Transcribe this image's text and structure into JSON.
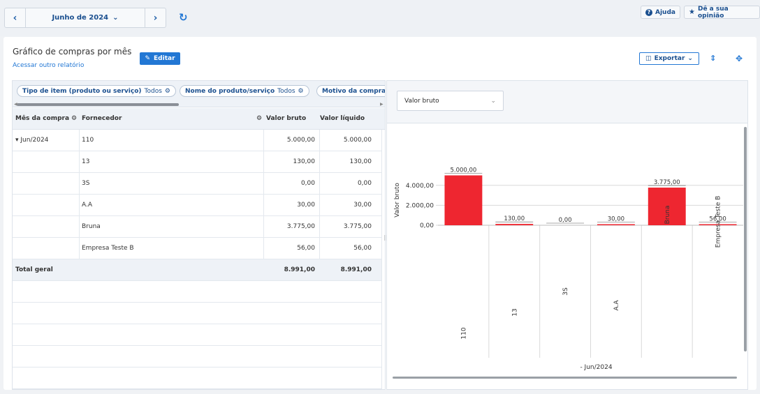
{
  "topbar": {
    "prev_icon": "chevron-left-icon",
    "month_label": "Junho de 2024",
    "next_icon": "chevron-right-icon",
    "refresh_icon": "refresh-icon",
    "help_label": "Ajuda",
    "feedback_label": "Dê a sua opinião"
  },
  "report": {
    "title": "Gráfico de compras por mês",
    "other_report_link": "Acessar outro relatório",
    "edit_label": "Editar",
    "export_label": "Exportar",
    "expand_icon": "expand-collapse-icon",
    "fullscreen_icon": "fullscreen-icon"
  },
  "filters": [
    {
      "name": "Tipo de item (produto ou serviço)",
      "value": "Todos"
    },
    {
      "name": "Nome do produto/serviço",
      "value": "Todos"
    },
    {
      "name": "Motivo da compra",
      "value": ""
    }
  ],
  "table": {
    "headers": {
      "month": "Mês da compra",
      "supplier": "Fornecedor",
      "gross": "Valor bruto",
      "net": "Valor líquido"
    },
    "group_label": "Jun/2024",
    "rows": [
      {
        "supplier": "110",
        "gross": "5.000,00",
        "net": "5.000,00"
      },
      {
        "supplier": "13",
        "gross": "130,00",
        "net": "130,00"
      },
      {
        "supplier": "3S",
        "gross": "0,00",
        "net": "0,00"
      },
      {
        "supplier": "A.A",
        "gross": "30,00",
        "net": "30,00"
      },
      {
        "supplier": "Bruna",
        "gross": "3.775,00",
        "net": "3.775,00"
      },
      {
        "supplier": "Empresa Teste B",
        "gross": "56,00",
        "net": "56,00"
      }
    ],
    "total": {
      "label": "Total geral",
      "gross": "8.991,00",
      "net": "8.991,00"
    }
  },
  "chart_panel": {
    "measure_select": "Valor bruto"
  },
  "colors": {
    "bar": "#ee2630",
    "accent": "#2277d4",
    "header_bg": "#eef2f7"
  },
  "chart_data": {
    "type": "bar",
    "categories": [
      "110",
      "13",
      "3S",
      "A.A",
      "Bruna",
      "Empresa Teste B"
    ],
    "values": [
      5000,
      130,
      0,
      30,
      3775,
      56
    ],
    "value_labels": [
      "5.000,00",
      "130,00",
      "0,00",
      "30,00",
      "3.775,00",
      "56,00"
    ],
    "group_label": "Jun/2024",
    "ylabel": "Valor bruto",
    "yticks": [
      0,
      2000,
      4000
    ],
    "ytick_labels": [
      "0,00",
      "2.000,00",
      "4.000,00"
    ],
    "ylim": [
      0,
      5000
    ],
    "grid": true
  }
}
